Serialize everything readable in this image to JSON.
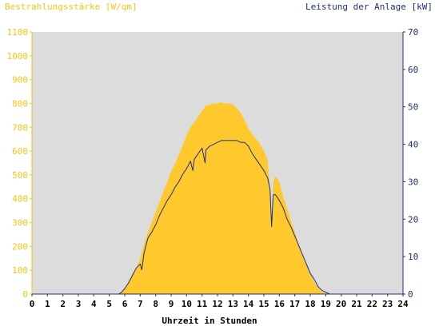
{
  "colors": {
    "background": "#ffffff",
    "plot_background": "#dcdcdc",
    "irradiance_fill": "#ffc92e",
    "left_axis_text": "#f5c518",
    "right_axis_color": "#1f2f7a",
    "power_line": "#1f2f7a"
  },
  "chart_data": {
    "type": "area",
    "title_left": "Bestrahlungsstärke [W/qm]",
    "title_right": "Leistung der Anlage [kW]",
    "xlabel": "Uhrzeit in Stunden",
    "xlim": [
      0,
      24
    ],
    "x_ticks": [
      "0",
      "1",
      "2",
      "3",
      "4",
      "5",
      "6",
      "7",
      "8",
      "9",
      "10",
      "11",
      "12",
      "13",
      "14",
      "15",
      "16",
      "17",
      "18",
      "19",
      "20",
      "21",
      "22",
      "23",
      "24"
    ],
    "y_left_lim": [
      0,
      1100
    ],
    "y_left_ticks": [
      "0",
      "100",
      "200",
      "300",
      "400",
      "500",
      "600",
      "700",
      "800",
      "900",
      "1000",
      "1100"
    ],
    "y_right_lim": [
      0,
      70
    ],
    "y_right_ticks": [
      "0",
      "10",
      "20",
      "30",
      "40",
      "50",
      "60",
      "70"
    ],
    "grid": false,
    "series": [
      {
        "name": "Bestrahlungsstärke [W/qm]",
        "axis": "left",
        "style": "area",
        "x": [
          0,
          5.5,
          5.75,
          6,
          6.25,
          6.5,
          6.75,
          7,
          7.25,
          7.5,
          7.75,
          8,
          8.25,
          8.5,
          8.75,
          9,
          9.25,
          9.5,
          9.75,
          10,
          10.25,
          10.5,
          10.75,
          11,
          11.25,
          11.5,
          11.75,
          12,
          12.25,
          12.5,
          12.75,
          13,
          13.25,
          13.5,
          13.75,
          14,
          14.25,
          14.5,
          14.75,
          15,
          15.25,
          15.4,
          15.5,
          15.6,
          15.75,
          16,
          16.25,
          16.5,
          16.75,
          17,
          17.25,
          17.5,
          17.75,
          18,
          18.25,
          18.5,
          18.75,
          19,
          19.25,
          19.5,
          24
        ],
        "values": [
          0,
          0,
          5,
          25,
          50,
          85,
          110,
          150,
          210,
          260,
          300,
          345,
          385,
          430,
          470,
          515,
          545,
          585,
          625,
          665,
          700,
          720,
          745,
          770,
          790,
          795,
          800,
          800,
          805,
          800,
          800,
          795,
          780,
          760,
          730,
          695,
          670,
          650,
          630,
          600,
          560,
          430,
          250,
          470,
          495,
          470,
          410,
          360,
          310,
          260,
          205,
          160,
          120,
          80,
          50,
          25,
          10,
          3,
          0,
          0,
          0
        ]
      },
      {
        "name": "Leistung der Anlage [kW]",
        "axis": "right",
        "style": "line",
        "x": [
          0,
          5.6,
          5.8,
          6,
          6.25,
          6.5,
          6.75,
          7,
          7.1,
          7.25,
          7.5,
          7.75,
          8,
          8.25,
          8.5,
          8.75,
          9,
          9.25,
          9.5,
          9.75,
          10,
          10.25,
          10.4,
          10.5,
          10.75,
          11,
          11.2,
          11.25,
          11.5,
          11.75,
          12,
          12.25,
          12.5,
          12.75,
          13,
          13.25,
          13.5,
          13.75,
          14,
          14.25,
          14.5,
          14.75,
          15,
          15.25,
          15.4,
          15.5,
          15.6,
          15.75,
          16,
          16.25,
          16.5,
          16.75,
          17,
          17.25,
          17.5,
          17.75,
          18,
          18.25,
          18.5,
          18.75,
          19,
          19.25,
          19.5,
          24
        ],
        "values": [
          0,
          0,
          0.5,
          1.5,
          3,
          5,
          7,
          8,
          6.5,
          11,
          15,
          16.5,
          18.5,
          21,
          23,
          25,
          26.5,
          28.5,
          30,
          32,
          33.5,
          35.5,
          33,
          36,
          37.5,
          39,
          35,
          38.5,
          39.5,
          40,
          40.5,
          41,
          41,
          41,
          41,
          41,
          40.5,
          40.5,
          39.5,
          37.5,
          36,
          34.5,
          33,
          31,
          28,
          18,
          26.5,
          26.5,
          25,
          23,
          20,
          18,
          15.5,
          13,
          10.5,
          8,
          5.5,
          4,
          2,
          1,
          0.5,
          0,
          0,
          0
        ]
      }
    ]
  }
}
